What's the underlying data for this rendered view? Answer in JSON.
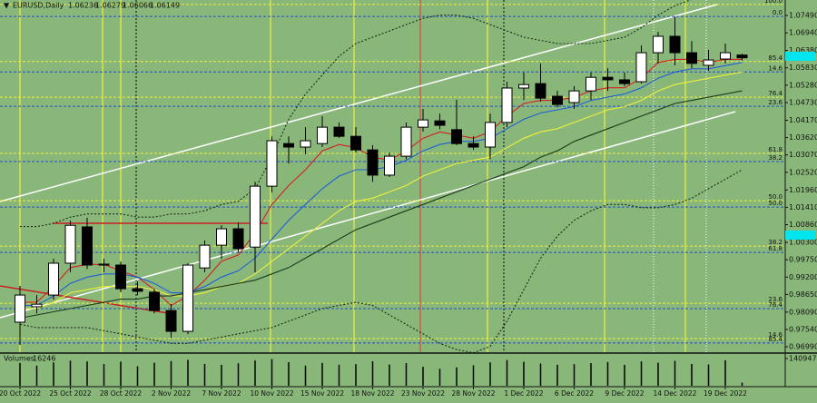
{
  "chart_data": {
    "type": "candlestick",
    "title": "EURUSD,Daily",
    "categories": [
      "20 Oct 2022",
      null,
      null,
      "25 Oct 2022",
      null,
      null,
      "28 Oct 2022",
      null,
      null,
      "2 Nov 2022",
      null,
      null,
      "7 Nov 2022",
      null,
      null,
      "10 Nov 2022",
      null,
      null,
      "15 Nov 2022",
      null,
      null,
      "18 Nov 2022",
      null,
      null,
      "23 Nov 2022",
      null,
      null,
      "28 Nov 2022",
      null,
      null,
      "1 Dec 2022",
      null,
      null,
      "6 Dec 2022",
      null,
      null,
      "9 Dec 2022",
      null,
      null,
      "14 Dec 2022",
      null,
      null,
      "19 Dec 2022",
      null
    ],
    "open": [
      0.9777,
      0.9826,
      0.9863,
      0.9964,
      1.0079,
      0.9958,
      0.9958,
      0.9883,
      0.9872,
      0.9814,
      0.9748,
      0.9949,
      1.0021,
      1.0073,
      1.0015,
      1.0208,
      1.0343,
      1.0332,
      1.0343,
      1.0395,
      1.0366,
      1.0323,
      1.0243,
      1.0303,
      1.0395,
      1.0415,
      1.0387,
      1.0343,
      1.0332,
      1.041,
      1.0519,
      1.0533,
      1.0493,
      1.0473,
      1.051,
      1.0553,
      1.0545,
      1.0539,
      1.0631,
      1.0683,
      1.0631,
      1.0591,
      1.0611,
      1.06236
    ],
    "high": [
      0.9892,
      0.9863,
      0.9978,
      1.0099,
      1.0108,
      0.9978,
      0.9969,
      0.9906,
      0.9883,
      0.9834,
      0.9964,
      1.0036,
      1.0084,
      1.0093,
      1.0222,
      1.0366,
      1.0366,
      1.0395,
      1.043,
      1.041,
      1.0395,
      1.0338,
      1.0314,
      1.041,
      1.0453,
      1.0438,
      1.0482,
      1.0366,
      1.0438,
      1.0539,
      1.0568,
      1.0597,
      1.051,
      1.0525,
      1.0568,
      1.0582,
      1.0568,
      1.0654,
      1.0697,
      1.0746,
      1.0668,
      1.064,
      1.066,
      1.06279
    ],
    "low": [
      0.9705,
      0.9805,
      0.9849,
      0.9935,
      0.9946,
      0.9935,
      0.9872,
      0.9863,
      0.9805,
      0.9728,
      0.9739,
      0.9935,
      0.9978,
      0.9998,
      0.9935,
      1.0188,
      1.028,
      1.0309,
      1.0332,
      1.0361,
      1.0314,
      1.0222,
      1.0237,
      1.0294,
      1.0381,
      1.0389,
      1.0338,
      1.0323,
      1.0294,
      1.0395,
      1.0481,
      1.0476,
      1.0458,
      1.0453,
      1.0481,
      1.051,
      1.0525,
      1.0533,
      1.0597,
      1.0591,
      1.0582,
      1.0574,
      1.0597,
      1.06066
    ],
    "close": [
      0.9863,
      0.9834,
      0.9964,
      1.0084,
      0.9958,
      0.9961,
      0.9883,
      0.9875,
      0.9814,
      0.9748,
      0.9958,
      1.0021,
      1.0073,
      1.001,
      1.0208,
      1.0352,
      1.0332,
      1.0352,
      1.0395,
      1.0366,
      1.0323,
      1.0243,
      1.0303,
      1.0395,
      1.0418,
      1.0401,
      1.0343,
      1.0332,
      1.041,
      1.0519,
      1.053,
      1.0487,
      1.0467,
      1.051,
      1.0553,
      1.0545,
      1.0533,
      1.0631,
      1.0683,
      1.0631,
      1.0597,
      1.0608,
      1.0631,
      1.06149
    ],
    "up_color": "#ffffff",
    "down_color": "#000000",
    "ylim": [
      0.9682,
      1.0798
    ],
    "yticks": [
      {
        "value": 1.0749,
        "label": "1.07490"
      },
      {
        "value": 1.0694,
        "label": "1.06940"
      },
      {
        "value": 1.0638,
        "label": "1.06380"
      },
      {
        "value": 1.0583,
        "label": "1.05830"
      },
      {
        "value": 1.0528,
        "label": "1.05280"
      },
      {
        "value": 1.0473,
        "label": "1.04730"
      },
      {
        "value": 1.0417,
        "label": "1.04170"
      },
      {
        "value": 1.0362,
        "label": "1.03620"
      },
      {
        "value": 1.0307,
        "label": "1.03070"
      },
      {
        "value": 1.0252,
        "label": "1.02520"
      },
      {
        "value": 1.0196,
        "label": "1.01960"
      },
      {
        "value": 1.0141,
        "label": "1.01410"
      },
      {
        "value": 1.0086,
        "label": "1.00860"
      },
      {
        "value": 1.003,
        "label": "1.00300"
      },
      {
        "value": 0.9975,
        "label": "0.99750"
      },
      {
        "value": 0.992,
        "label": "0.99200"
      },
      {
        "value": 0.9865,
        "label": "0.98650"
      },
      {
        "value": 0.9809,
        "label": "0.98090"
      },
      {
        "value": 0.9754,
        "label": "0.97540"
      },
      {
        "value": 0.9699,
        "label": "0.96990"
      }
    ],
    "series": [
      {
        "color": "#d42020",
        "style": "solid",
        "values": [
          0.984,
          0.984,
          0.989,
          0.995,
          0.996,
          0.996,
          0.994,
          0.992,
          0.988,
          0.983,
          0.986,
          0.991,
          0.997,
          0.999,
          1.006,
          1.015,
          1.021,
          1.026,
          1.032,
          1.034,
          1.033,
          1.03,
          1.029,
          1.032,
          1.036,
          1.038,
          1.037,
          1.036,
          1.038,
          1.043,
          1.047,
          1.048,
          1.048,
          1.049,
          1.051,
          1.052,
          1.052,
          1.055,
          1.06,
          1.061,
          1.061,
          1.06,
          1.061,
          1.061
        ]
      },
      {
        "color": "#1e5fd8",
        "style": "solid",
        "values": [
          0.983,
          0.983,
          0.986,
          0.99,
          0.992,
          0.993,
          0.993,
          0.992,
          0.99,
          0.987,
          0.987,
          0.989,
          0.992,
          0.994,
          0.998,
          1.004,
          1.01,
          1.015,
          1.02,
          1.024,
          1.026,
          1.026,
          1.027,
          1.029,
          1.032,
          1.034,
          1.035,
          1.035,
          1.036,
          1.039,
          1.042,
          1.044,
          1.045,
          1.046,
          1.048,
          1.049,
          1.05,
          1.052,
          1.055,
          1.057,
          1.058,
          1.058,
          1.059,
          1.06
        ]
      },
      {
        "color": "#eef03c",
        "style": "solid",
        "values": [
          0.982,
          0.982,
          0.984,
          0.987,
          0.988,
          0.989,
          0.989,
          0.989,
          0.988,
          0.986,
          0.986,
          0.987,
          0.989,
          0.99,
          0.993,
          0.997,
          1.001,
          1.005,
          1.009,
          1.013,
          1.016,
          1.017,
          1.019,
          1.021,
          1.024,
          1.026,
          1.028,
          1.029,
          1.03,
          1.033,
          1.036,
          1.038,
          1.039,
          1.041,
          1.043,
          1.045,
          1.046,
          1.048,
          1.051,
          1.053,
          1.054,
          1.055,
          1.056,
          1.057
        ]
      },
      {
        "color": "#1d3a1d",
        "style": "solid",
        "values": [
          0.979,
          0.98,
          0.981,
          0.982,
          0.983,
          0.984,
          0.985,
          0.985,
          0.986,
          0.986,
          0.987,
          0.988,
          0.989,
          0.99,
          0.991,
          0.993,
          0.995,
          0.998,
          1.001,
          1.004,
          1.007,
          1.009,
          1.011,
          1.013,
          1.015,
          1.017,
          1.019,
          1.021,
          1.023,
          1.025,
          1.027,
          1.03,
          1.032,
          1.035,
          1.037,
          1.039,
          1.041,
          1.043,
          1.045,
          1.047,
          1.048,
          1.049,
          1.05,
          1.051
        ]
      },
      {
        "color": "#1d2a1d",
        "style": "dotted",
        "values": [
          1.008,
          1.008,
          1.009,
          1.011,
          1.012,
          1.012,
          1.012,
          1.011,
          1.011,
          1.012,
          1.012,
          1.013,
          1.015,
          1.016,
          1.02,
          1.03,
          1.042,
          1.05,
          1.056,
          1.062,
          1.066,
          1.068,
          1.07,
          1.072,
          1.074,
          1.075,
          1.075,
          1.074,
          1.072,
          1.07,
          1.068,
          1.067,
          1.066,
          1.066,
          1.066,
          1.067,
          1.068,
          1.071,
          1.075,
          1.078,
          1.08,
          1.08,
          1.08,
          1.08
        ]
      },
      {
        "color": "#1d2a1d",
        "style": "dotted",
        "values": [
          0.977,
          0.976,
          0.976,
          0.976,
          0.976,
          0.975,
          0.974,
          0.973,
          0.972,
          0.971,
          0.971,
          0.972,
          0.973,
          0.974,
          0.975,
          0.976,
          0.978,
          0.98,
          0.982,
          0.983,
          0.984,
          0.983,
          0.98,
          0.977,
          0.974,
          0.971,
          0.969,
          0.968,
          0.97,
          0.978,
          0.988,
          0.998,
          1.005,
          1.01,
          1.013,
          1.015,
          1.015,
          1.014,
          1.014,
          1.015,
          1.017,
          1.02,
          1.023,
          1.026
        ]
      }
    ],
    "fib_levels": [
      {
        "label": "100.0",
        "value": 1.0784,
        "color": "#eef03c"
      },
      {
        "label": "0.0",
        "value": 1.0746,
        "color": "#1e4fd0"
      },
      {
        "label": "85.4",
        "value": 1.0603,
        "color": "#eef03c"
      },
      {
        "label": "14.6",
        "value": 1.057,
        "color": "#1e4fd0"
      },
      {
        "label": "76.4",
        "value": 1.049,
        "color": "#eef03c"
      },
      {
        "label": "23.6",
        "value": 1.0461,
        "color": "#1e4fd0"
      },
      {
        "label": "61.8",
        "value": 1.0312,
        "color": "#eef03c"
      },
      {
        "label": "38.2",
        "value": 1.0286,
        "color": "#1e4fd0"
      },
      {
        "label": "50.0",
        "value": 1.0162,
        "color": "#eef03c"
      },
      {
        "label": "50.0",
        "value": 1.0142,
        "color": "#1e4fd0"
      },
      {
        "label": "38.2",
        "value": 1.0018,
        "color": "#eef03c"
      },
      {
        "label": "61.8",
        "value": 0.9998,
        "color": "#1e4fd0"
      },
      {
        "label": "23.6",
        "value": 0.9837,
        "color": "#eef03c"
      },
      {
        "label": "76.4",
        "value": 0.982,
        "color": "#1e4fd0"
      },
      {
        "label": "14.6",
        "value": 0.9725,
        "color": "#eef03c"
      },
      {
        "label": "85.4",
        "value": 0.9711,
        "color": "#1e4fd0"
      }
    ],
    "volume": {
      "label": "Volumes",
      "color": "#000000",
      "ylim": [
        0,
        140947
      ],
      "yticks": [
        140947
      ],
      "values": [
        118000,
        104000,
        121000,
        130000,
        126000,
        112000,
        125000,
        101000,
        119000,
        128000,
        134000,
        113000,
        108000,
        116000,
        131000,
        138000,
        122000,
        104000,
        118000,
        109000,
        112000,
        127000,
        110000,
        117000,
        98000,
        88000,
        95000,
        106000,
        121000,
        133000,
        124000,
        115000,
        109000,
        112000,
        117000,
        123000,
        108000,
        126000,
        119000,
        129000,
        113000,
        110000,
        132000,
        16246
      ]
    }
  }
}
